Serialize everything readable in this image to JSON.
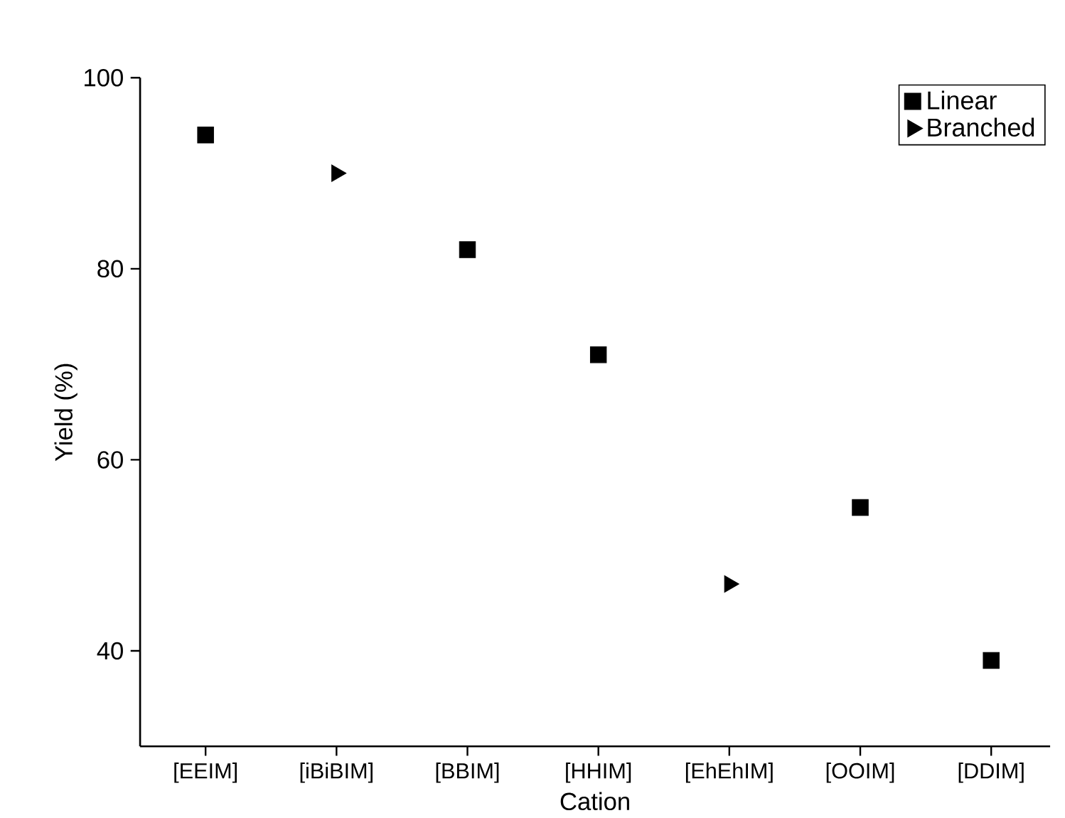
{
  "chart_data": {
    "type": "scatter",
    "xlabel": "Cation",
    "ylabel": "Yield (%)",
    "categories": [
      "[EEIM]",
      "[iBiBIM]",
      "[BBIM]",
      "[HHIM]",
      "[EhEhIM]",
      "[OOIM]",
      "[DDIM]"
    ],
    "series": [
      {
        "name": "Linear",
        "color": "#000000",
        "marker": "square",
        "values": [
          94,
          null,
          82,
          71,
          null,
          55,
          39
        ]
      },
      {
        "name": "Branched",
        "color": "#000000",
        "marker": "triangle",
        "values": [
          null,
          90,
          null,
          null,
          47,
          null,
          null
        ]
      }
    ],
    "ylim": [
      30,
      100
    ],
    "yticks": [
      40,
      60,
      80,
      100
    ],
    "grid": false,
    "legend": "top right"
  }
}
